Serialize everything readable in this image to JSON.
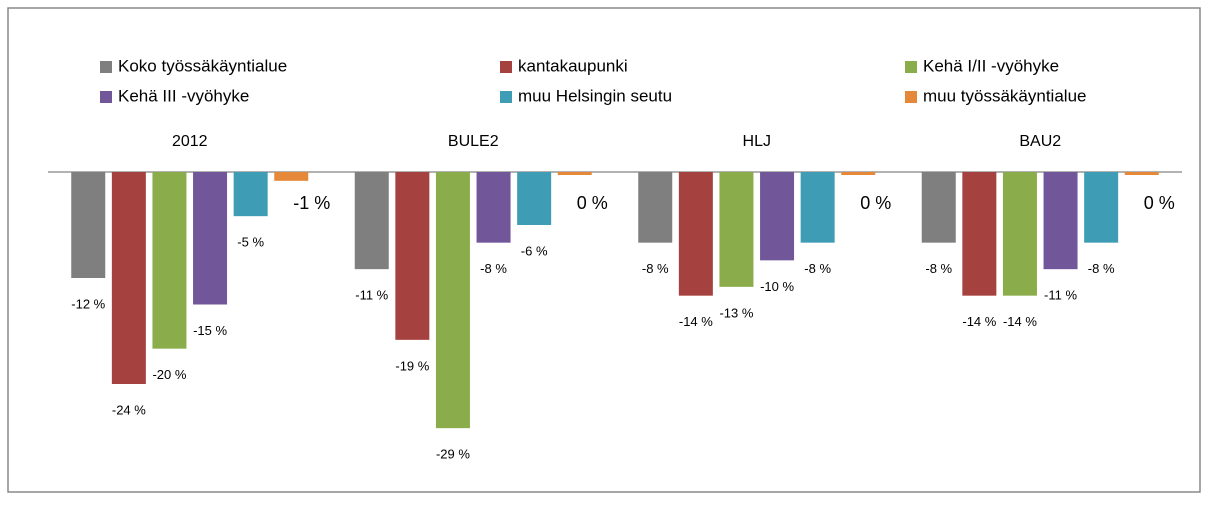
{
  "chart_data": {
    "type": "bar",
    "categories": [
      "2012",
      "BULE2",
      "HLJ",
      "BAU2"
    ],
    "series": [
      {
        "name": "Koko työssäkäyntialue",
        "color": "#7f7f7f",
        "values": [
          -12,
          -11,
          -8,
          -8
        ],
        "value_labels": [
          "-12 %",
          "-11 %",
          "-8 %",
          "-8 %"
        ]
      },
      {
        "name": "kantakaupunki",
        "color": "#a5413e",
        "values": [
          -24,
          -19,
          -14,
          -14
        ],
        "value_labels": [
          "-24 %",
          "-19 %",
          "-14 %",
          "-14 %"
        ]
      },
      {
        "name": "Kehä I/II -vyöhyke",
        "color": "#8aac4a",
        "values": [
          -20,
          -29,
          -13,
          -14
        ],
        "value_labels": [
          "-20 %",
          "-29 %",
          "-13 %",
          "-14 %"
        ]
      },
      {
        "name": "Kehä III -vyöhyke",
        "color": "#71579a",
        "values": [
          -15,
          -8,
          -10,
          -11
        ],
        "value_labels": [
          "-15 %",
          "-8 %",
          "-10 %",
          "-11 %"
        ]
      },
      {
        "name": "muu Helsingin seutu",
        "color": "#3e9db5",
        "values": [
          -5,
          -6,
          -8,
          -8
        ],
        "value_labels": [
          "-5 %",
          "-6 %",
          "-8 %",
          "-8 %"
        ]
      },
      {
        "name": "muu työssäkäyntialue",
        "color": "#e6883a",
        "values": [
          -1,
          0,
          0,
          0
        ],
        "value_labels": [
          "-1 %",
          "0 %",
          "0 %",
          "0 %"
        ]
      }
    ],
    "ylim": [
      -30,
      0
    ],
    "legend": "top"
  }
}
